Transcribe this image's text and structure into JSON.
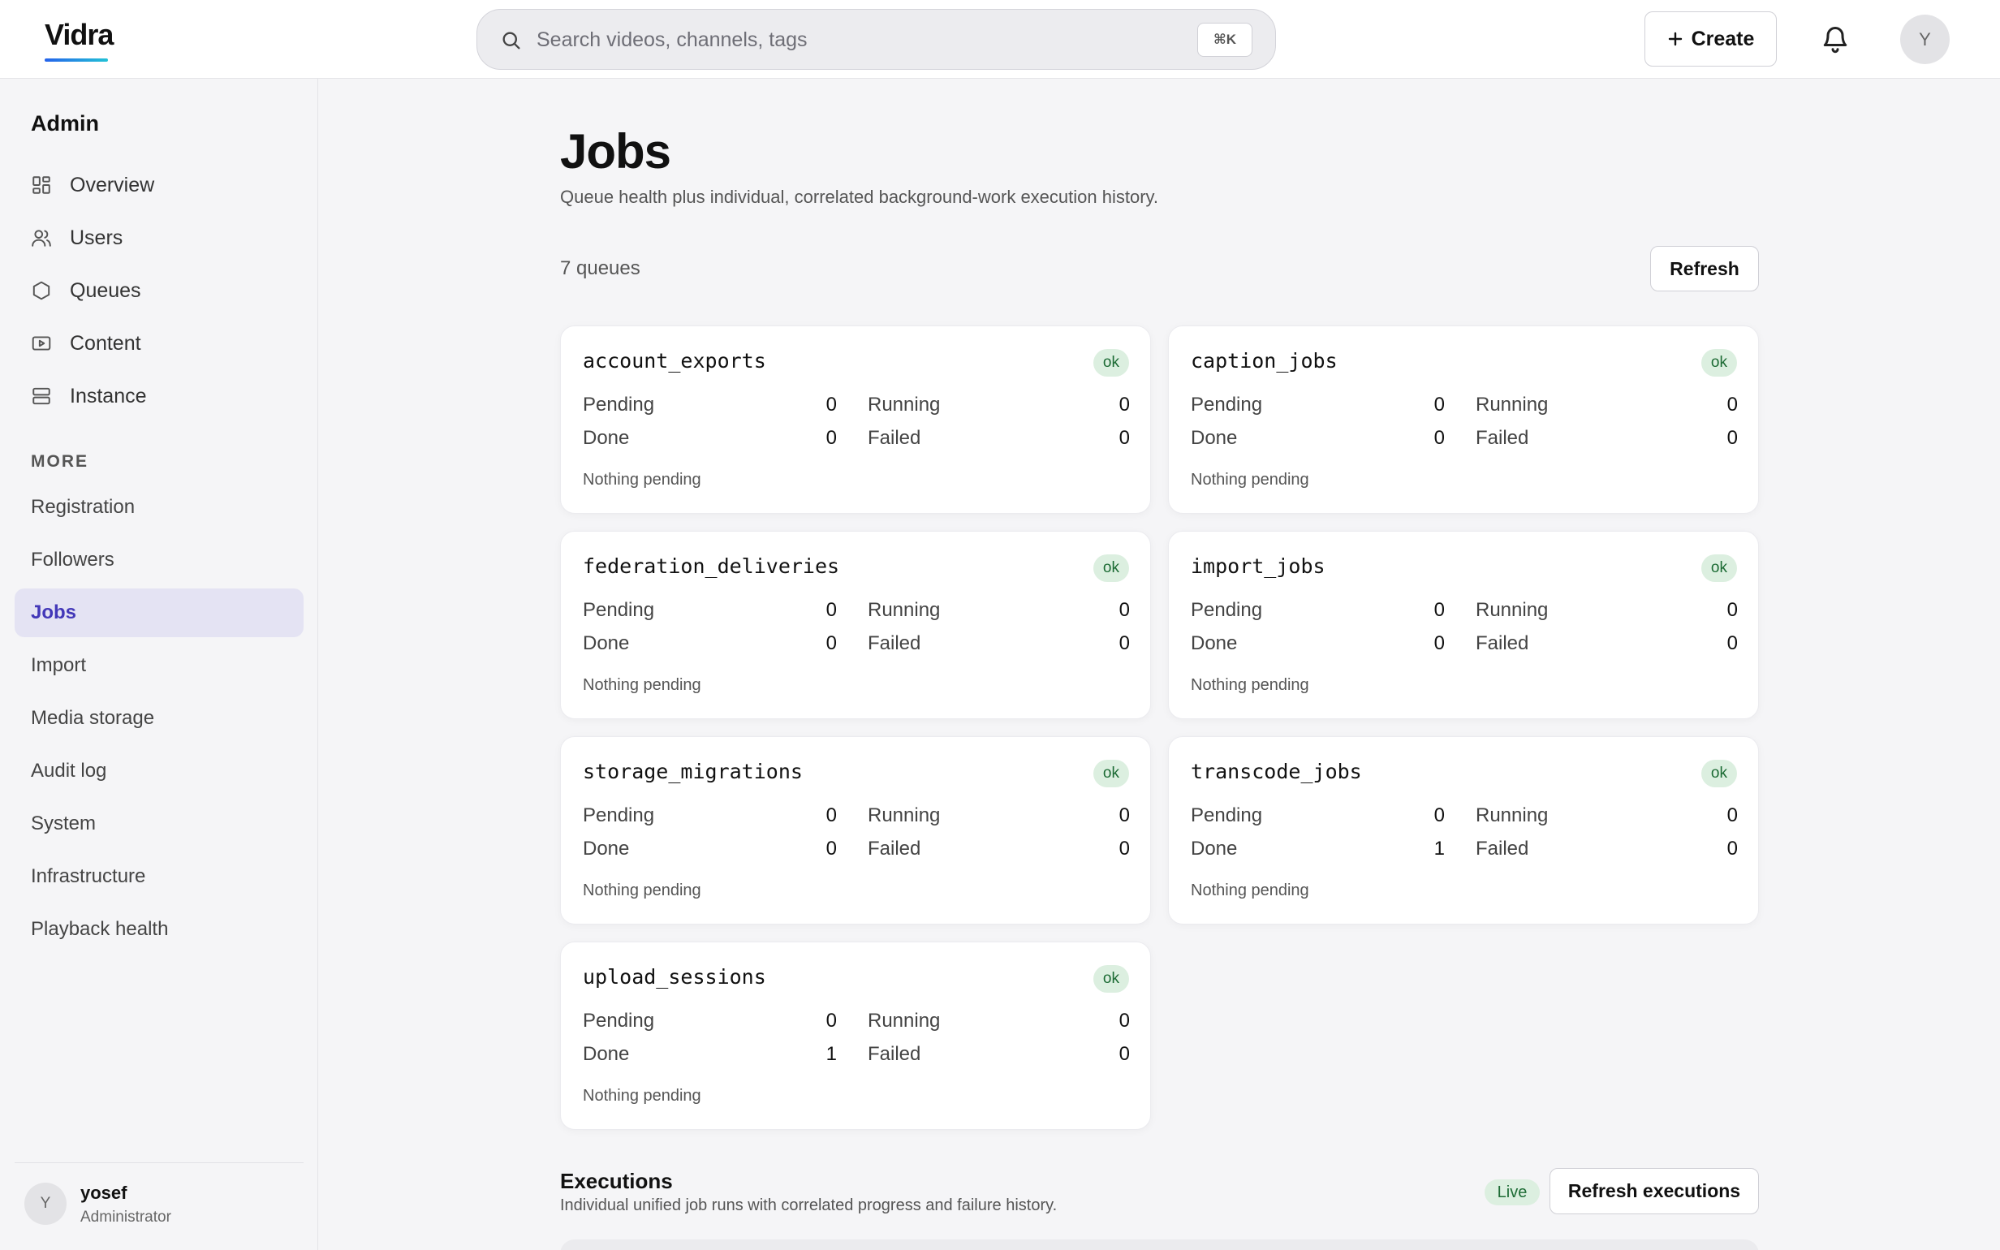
{
  "header": {
    "logo": "Vidra",
    "search_placeholder": "Search videos, channels, tags",
    "search_shortcut": "⌘K",
    "create_label": "Create",
    "avatar_initial": "Y"
  },
  "sidebar": {
    "title": "Admin",
    "items": [
      {
        "label": "Overview",
        "icon": "grid-icon"
      },
      {
        "label": "Users",
        "icon": "users-icon"
      },
      {
        "label": "Queues",
        "icon": "hexagon-icon"
      },
      {
        "label": "Content",
        "icon": "play-square-icon"
      },
      {
        "label": "Instance",
        "icon": "server-icon"
      }
    ],
    "more_label": "MORE",
    "more_items": [
      {
        "label": "Registration"
      },
      {
        "label": "Followers"
      },
      {
        "label": "Jobs",
        "active": true
      },
      {
        "label": "Import"
      },
      {
        "label": "Media storage"
      },
      {
        "label": "Audit log"
      },
      {
        "label": "System"
      },
      {
        "label": "Infrastructure"
      },
      {
        "label": "Playback health"
      }
    ],
    "user": {
      "initial": "Y",
      "name": "yosef",
      "role": "Administrator"
    }
  },
  "main": {
    "title": "Jobs",
    "subtitle": "Queue health plus individual, correlated background-work execution history.",
    "queue_count": "7 queues",
    "refresh_label": "Refresh",
    "labels": {
      "pending": "Pending",
      "running": "Running",
      "done": "Done",
      "failed": "Failed"
    },
    "queues": [
      {
        "name": "account_exports",
        "status": "ok",
        "pending": "0",
        "running": "0",
        "done": "0",
        "failed": "0",
        "note": "Nothing pending"
      },
      {
        "name": "caption_jobs",
        "status": "ok",
        "pending": "0",
        "running": "0",
        "done": "0",
        "failed": "0",
        "note": "Nothing pending"
      },
      {
        "name": "federation_deliveries",
        "status": "ok",
        "pending": "0",
        "running": "0",
        "done": "0",
        "failed": "0",
        "note": "Nothing pending"
      },
      {
        "name": "import_jobs",
        "status": "ok",
        "pending": "0",
        "running": "0",
        "done": "0",
        "failed": "0",
        "note": "Nothing pending"
      },
      {
        "name": "storage_migrations",
        "status": "ok",
        "pending": "0",
        "running": "0",
        "done": "0",
        "failed": "0",
        "note": "Nothing pending"
      },
      {
        "name": "transcode_jobs",
        "status": "ok",
        "pending": "0",
        "running": "0",
        "done": "1",
        "failed": "0",
        "note": "Nothing pending"
      },
      {
        "name": "upload_sessions",
        "status": "ok",
        "pending": "0",
        "running": "0",
        "done": "1",
        "failed": "0",
        "note": "Nothing pending"
      }
    ],
    "executions": {
      "title": "Executions",
      "subtitle": "Individual unified job runs with correlated progress and failure history.",
      "live_label": "Live",
      "refresh_label": "Refresh executions"
    }
  },
  "colors": {
    "accent": "#4338b8",
    "ok_bg": "#dcefe0",
    "ok_fg": "#1c6b34"
  }
}
